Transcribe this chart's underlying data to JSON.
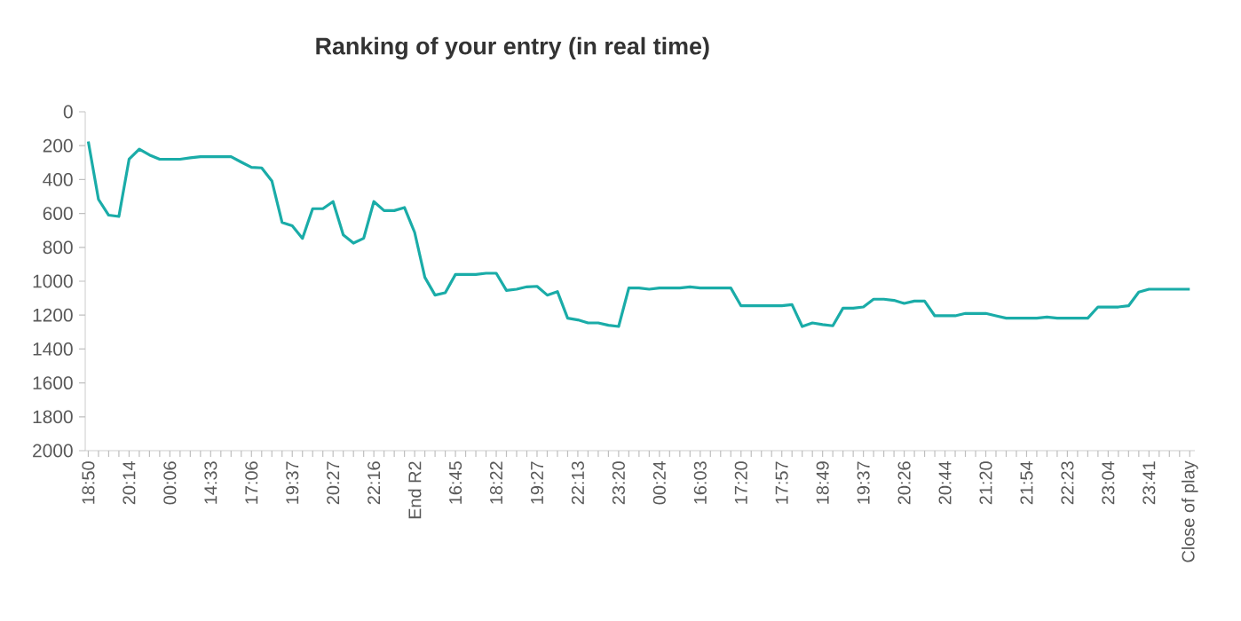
{
  "chart_data": {
    "type": "line",
    "title": "Ranking of your entry (in real time)",
    "categories": [
      "18:50",
      null,
      null,
      null,
      "20:14",
      null,
      null,
      null,
      "00:06",
      null,
      null,
      null,
      "14:33",
      null,
      null,
      null,
      "17:06",
      null,
      null,
      null,
      "19:37",
      null,
      null,
      null,
      "20:27",
      null,
      null,
      null,
      "22:16",
      null,
      null,
      null,
      "End R2",
      null,
      null,
      null,
      "16:45",
      null,
      null,
      null,
      "18:22",
      null,
      null,
      null,
      "19:27",
      null,
      null,
      null,
      "22:13",
      null,
      null,
      null,
      "23:20",
      null,
      null,
      null,
      "00:24",
      null,
      null,
      null,
      "16:03",
      null,
      null,
      null,
      "17:20",
      null,
      null,
      null,
      "17:57",
      null,
      null,
      null,
      "18:49",
      null,
      null,
      null,
      "19:37",
      null,
      null,
      null,
      "20:26",
      null,
      null,
      null,
      "20:44",
      null,
      null,
      null,
      "21:20",
      null,
      null,
      null,
      "21:54",
      null,
      null,
      null,
      "22:23",
      null,
      null,
      null,
      "23:04",
      null,
      null,
      null,
      "23:41",
      null,
      null,
      null,
      "Close of play"
    ],
    "series": [
      {
        "color": "#1aaca8",
        "values": [
          175,
          517,
          610,
          618,
          280,
          220,
          255,
          280,
          280,
          280,
          272,
          265,
          265,
          265,
          265,
          297,
          328,
          331,
          408,
          653,
          673,
          747,
          572,
          572,
          530,
          726,
          775,
          747,
          530,
          583,
          583,
          565,
          712,
          977,
          1082,
          1068,
          960,
          960,
          960,
          953,
          953,
          1054,
          1047,
          1033,
          1030,
          1082,
          1061,
          1218,
          1228,
          1246,
          1246,
          1260,
          1267,
          1040,
          1040,
          1047,
          1040,
          1040,
          1040,
          1033,
          1040,
          1040,
          1040,
          1040,
          1145,
          1145,
          1145,
          1145,
          1145,
          1138,
          1267,
          1246,
          1256,
          1263,
          1159,
          1159,
          1152,
          1106,
          1106,
          1113,
          1131,
          1117,
          1117,
          1204,
          1204,
          1204,
          1190,
          1190,
          1190,
          1204,
          1218,
          1218,
          1218,
          1218,
          1211,
          1218,
          1218,
          1218,
          1218,
          1152,
          1152,
          1152,
          1145,
          1064,
          1047,
          1047,
          1047,
          1047,
          1047
        ]
      }
    ],
    "ylim": [
      2000,
      0
    ],
    "yticks": [
      0,
      200,
      400,
      600,
      800,
      1000,
      1200,
      1400,
      1600,
      1800,
      2000
    ]
  }
}
